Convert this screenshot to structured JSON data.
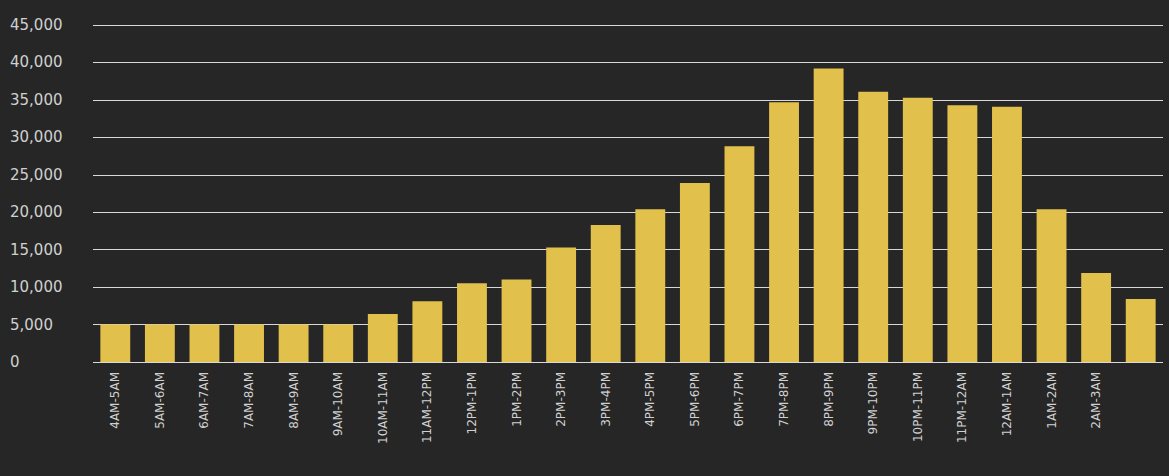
{
  "chart_data": {
    "type": "bar",
    "categories": [
      "4AM-5AM",
      "5AM-6AM",
      "6AM-7AM",
      "7AM-8AM",
      "8AM-9AM",
      "9AM-10AM",
      "10AM-11AM",
      "11AM-12PM",
      "12PM-1PM",
      "1PM-2PM",
      "2PM-3PM",
      "3PM-4PM",
      "4PM-5PM",
      "5PM-6PM",
      "6PM-7PM",
      "7PM-8PM",
      "8PM-9PM",
      "9PM-10PM",
      "10PM-11PM",
      "11PM-12AM",
      "12AM-1AM",
      "1AM-2AM",
      "2AM-3AM",
      null
    ],
    "values": [
      5000,
      5000,
      5000,
      5000,
      5000,
      5000,
      6400,
      8100,
      10500,
      11000,
      15300,
      18300,
      20400,
      23900,
      28800,
      34700,
      39200,
      36100,
      35300,
      34300,
      34100,
      20400,
      11900,
      8400
    ],
    "color": "#e2c04c",
    "ylim": [
      0,
      45000
    ],
    "yticks": [
      0,
      5000,
      10000,
      15000,
      20000,
      25000,
      30000,
      35000,
      40000,
      45000
    ],
    "grid": true
  }
}
